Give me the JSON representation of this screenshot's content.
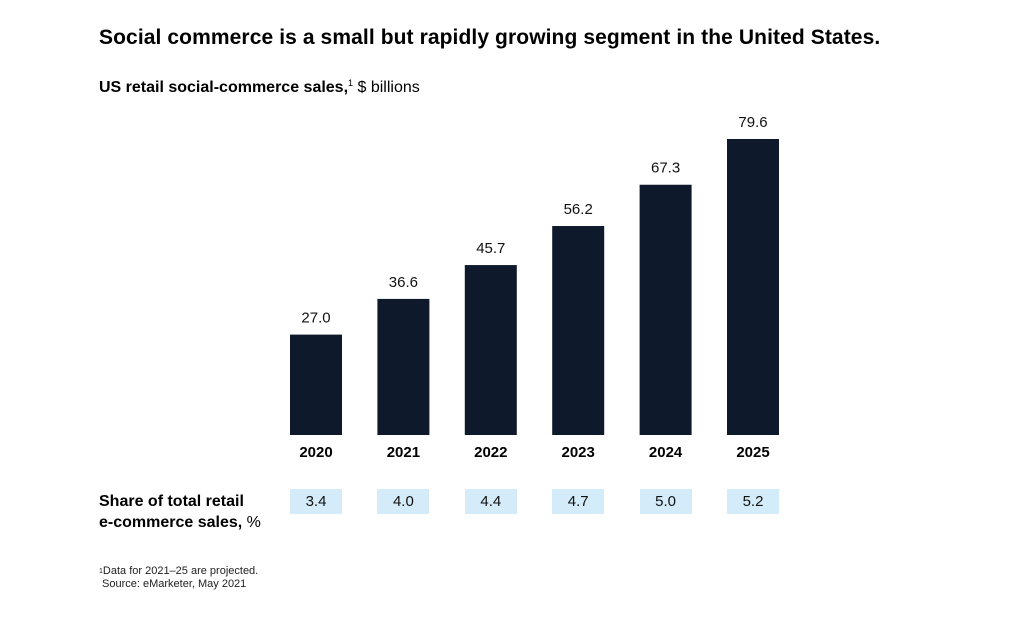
{
  "title": "Social commerce is a small but rapidly growing segment in the United States.",
  "subtitle": {
    "bold": "US retail social-commerce sales,",
    "note_marker": "1",
    "unit": " $ billions"
  },
  "chart_data": {
    "type": "bar",
    "categories": [
      "2020",
      "2021",
      "2022",
      "2023",
      "2024",
      "2025"
    ],
    "values": [
      27.0,
      36.6,
      45.7,
      56.2,
      67.3,
      79.6
    ],
    "value_labels": [
      "27.0",
      "36.6",
      "45.7",
      "56.2",
      "67.3",
      "79.6"
    ],
    "ylim": [
      0,
      79.6
    ],
    "grid": false,
    "bar_color": "#0e1a2b"
  },
  "share": {
    "label_bold": "Share of total retail",
    "label_line2_bold": "e-commerce sales,",
    "label_unit": " %",
    "values": [
      "3.4",
      "4.0",
      "4.4",
      "4.7",
      "5.0",
      "5.2"
    ],
    "box_color": "#d4ecf9"
  },
  "footnote": {
    "marker": "1",
    "line1": "Data for 2021–25 are projected.",
    "line2": "Source: eMarketer, May 2021"
  }
}
